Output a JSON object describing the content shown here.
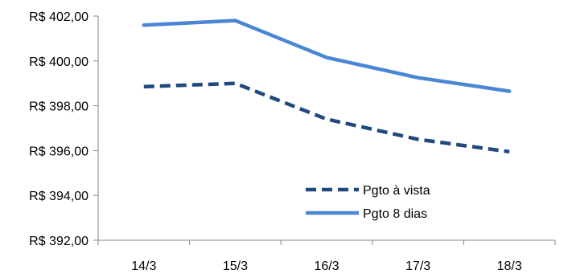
{
  "chart_data": {
    "type": "line",
    "title": "",
    "xlabel": "",
    "ylabel": "",
    "categories": [
      "14/3",
      "15/3",
      "16/3",
      "17/3",
      "18/3"
    ],
    "ylim": [
      392,
      402
    ],
    "yticks": [
      392,
      394,
      396,
      398,
      400,
      402
    ],
    "ytick_labels": [
      "R$ 392,00",
      "R$ 394,00",
      "R$ 396,00",
      "R$ 398,00",
      "R$ 400,00",
      "R$ 402,00"
    ],
    "grid": false,
    "legend_position": "bottom-right",
    "series": [
      {
        "name": "Pgto à vista",
        "values": [
          398.85,
          399.0,
          397.4,
          396.5,
          395.95
        ],
        "color": "#1F497D",
        "style": "dashed"
      },
      {
        "name": "Pgto 8 dias",
        "values": [
          401.6,
          401.8,
          400.15,
          399.25,
          398.65
        ],
        "color": "#4A86D4",
        "style": "solid"
      }
    ]
  }
}
